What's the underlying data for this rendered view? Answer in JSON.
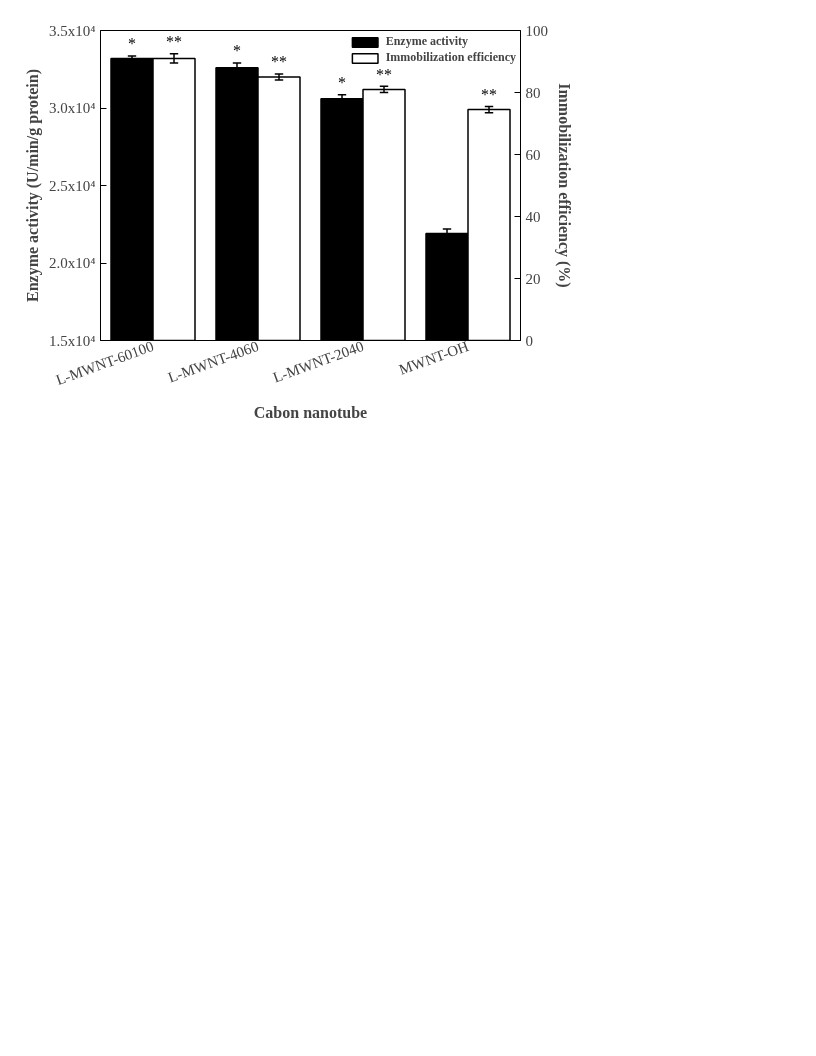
{
  "chart_data": {
    "type": "bar",
    "xlabel": "Cabon nanotube",
    "ylabel": "Enzyme activity (U/min/g protein)",
    "y2label": "Immobilization efficiency (%)",
    "categories": [
      "L-MWNT-60100",
      "L-MWNT-4060",
      "L-MWNT-2040",
      "MWNT-OH"
    ],
    "series": [
      {
        "name": "Enzyme activity",
        "color": "#000000",
        "values": [
          33200,
          32600,
          30600,
          21900
        ],
        "errors": [
          150,
          300,
          250,
          300
        ],
        "value_labels": [
          "*",
          "*",
          "*",
          null
        ]
      },
      {
        "name": "Immobilization efficiency",
        "color": "#ffffff",
        "axis": "y2",
        "values": [
          91,
          85,
          81,
          74.5
        ],
        "errors": [
          1.5,
          1,
          1,
          1
        ],
        "value_labels": [
          "**",
          "**",
          "**",
          "**"
        ]
      }
    ],
    "ylim": [
      15000,
      35000
    ],
    "yticks": [
      {
        "value": 15000,
        "label": "1.5x10⁴"
      },
      {
        "value": 20000,
        "label": "2.0x10⁴"
      },
      {
        "value": 25000,
        "label": "2.5x10⁴"
      },
      {
        "value": 30000,
        "label": "3.0x10⁴"
      },
      {
        "value": 35000,
        "label": "3.5x10⁴"
      }
    ],
    "y2lim": [
      0,
      100
    ],
    "y2ticks": [
      0,
      20,
      40,
      60,
      80,
      100
    ],
    "grid": false,
    "legend": "top right"
  }
}
